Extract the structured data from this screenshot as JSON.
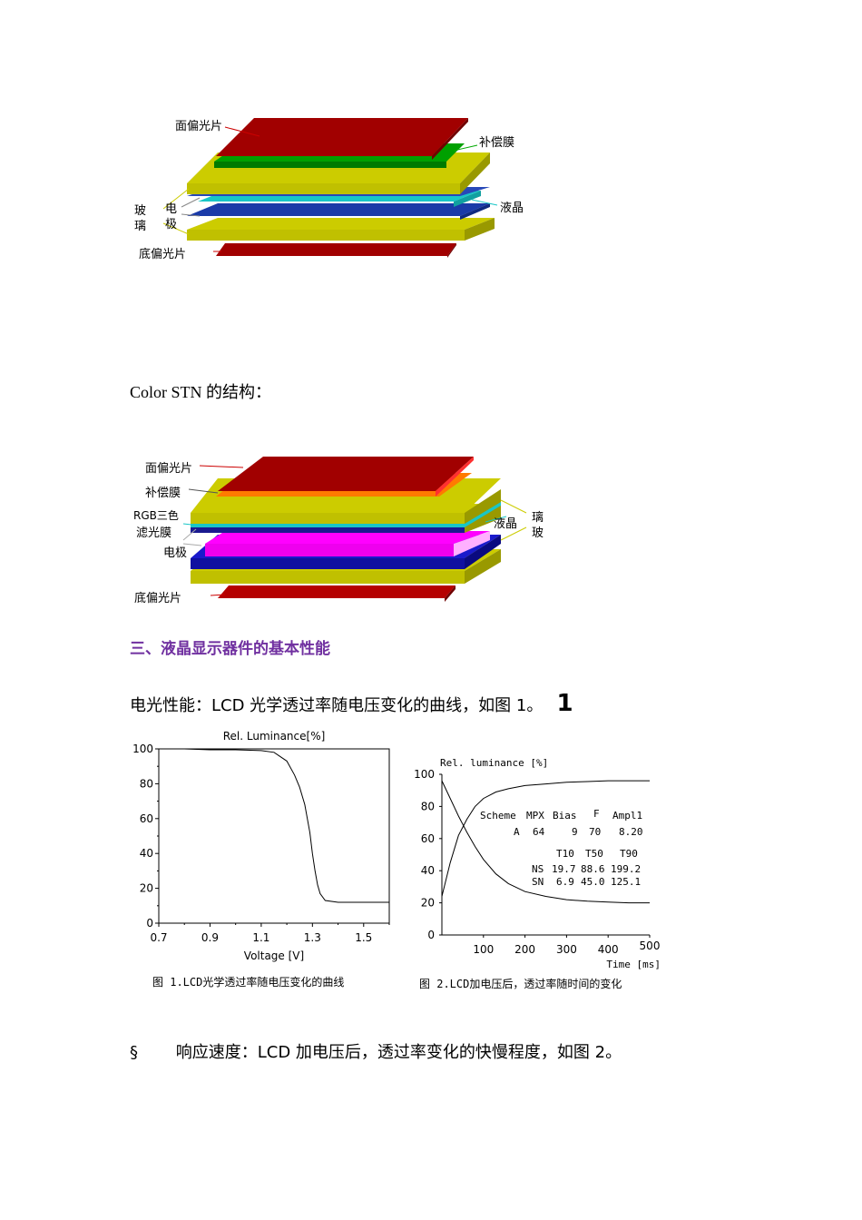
{
  "diagram1": {
    "labels": {
      "top_polarizer": "面偏光片",
      "compensation_film": "补偿膜",
      "glass_1": "玻",
      "glass_2": "璃",
      "electrode_1": "电",
      "electrode_2": "极",
      "liquid_crystal": "液晶",
      "bottom_polarizer": "底偏光片"
    }
  },
  "section_title": "Color STN 的结构：",
  "diagram2": {
    "labels": {
      "top_polarizer": "面偏光片",
      "compensation_film": "补偿膜",
      "rgb_filter_1": "RGB三色",
      "rgb_filter_2": "滤光膜",
      "electrode": "电极",
      "liquid_crystal": "液晶",
      "glass_1": "璃",
      "glass_2": "玻",
      "bottom_polarizer": "底偏光片"
    }
  },
  "heading3": "三、液晶显示器件的基本性能",
  "electro_optic": {
    "text": "电光性能：LCD 光学透过率随电压变化的曲线，如图 1。",
    "big_num": "1"
  },
  "chart_data": [
    {
      "type": "line",
      "title": "Rel. Luminance[%]",
      "xlabel": "Voltage [V]",
      "ylabel": "",
      "xlim": [
        0.7,
        1.6
      ],
      "ylim": [
        0,
        100
      ],
      "x_ticks": [
        "0.7",
        "0.9",
        "1.1",
        "1.3",
        "1.5"
      ],
      "y_ticks": [
        "0",
        "20",
        "40",
        "60",
        "80",
        "100"
      ],
      "series": [
        {
          "x": [
            0.7,
            0.8,
            0.9,
            1.0,
            1.1,
            1.15,
            1.2,
            1.23,
            1.25,
            1.27,
            1.29,
            1.3,
            1.31,
            1.32,
            1.33,
            1.35,
            1.4,
            1.5,
            1.6
          ],
          "y": [
            100,
            100,
            99.5,
            99.5,
            99,
            98,
            93,
            85,
            78,
            68,
            52,
            40,
            30,
            22,
            17,
            13,
            12,
            12,
            12
          ]
        }
      ],
      "caption": "图 1.LCD光学透过率随电压变化的曲线"
    },
    {
      "type": "line",
      "title": "Rel. luminance [%]",
      "xlabel": "Time [ms]",
      "ylabel": "",
      "xlim": [
        0,
        500
      ],
      "ylim": [
        0,
        100
      ],
      "x_ticks": [
        "100",
        "200",
        "300",
        "400",
        "500"
      ],
      "y_ticks": [
        "0",
        "20",
        "40",
        "60",
        "80",
        "100"
      ],
      "series": [
        {
          "x": [
            0,
            20,
            40,
            60,
            80,
            100,
            130,
            160,
            200,
            250,
            300,
            350,
            400,
            450,
            500
          ],
          "y": [
            24,
            45,
            62,
            72,
            80,
            85,
            89,
            91,
            93,
            94,
            95,
            95.5,
            96,
            96,
            96
          ]
        },
        {
          "x": [
            0,
            20,
            40,
            60,
            80,
            100,
            130,
            160,
            200,
            250,
            300,
            350,
            400,
            450,
            500
          ],
          "y": [
            96,
            85,
            74,
            64,
            55,
            47,
            38,
            32,
            27,
            24,
            22,
            21,
            20.5,
            20,
            20
          ]
        }
      ],
      "table": {
        "header": [
          "Scheme",
          "MPX",
          "Bias",
          "F",
          "Ampl1"
        ],
        "row_a": [
          "A",
          "64",
          "9",
          "70",
          "8.20"
        ],
        "t_header": [
          "T10",
          "T50",
          "T90"
        ],
        "ns": [
          "NS",
          "19.7",
          "88.6",
          "199.2"
        ],
        "sn": [
          "SN",
          "6.9",
          "45.0",
          "125.1"
        ]
      },
      "caption": "图 2.LCD加电压后，透过率随时间的变化"
    }
  ],
  "response_speed": {
    "bullet": "§",
    "text": "响应速度：LCD 加电压后，透过率变化的快慢程度，如图 2。"
  },
  "colors": {
    "polarizer_red": "#a10000",
    "glass_yellow": "#cccc00",
    "green_film": "#00a000",
    "cyan_lc": "#19c6c6",
    "blue_electrode": "#1a3aa8",
    "magenta_lc": "#ff00ff",
    "orange_film": "#ff7a00",
    "heading_purple": "#7030a0"
  }
}
